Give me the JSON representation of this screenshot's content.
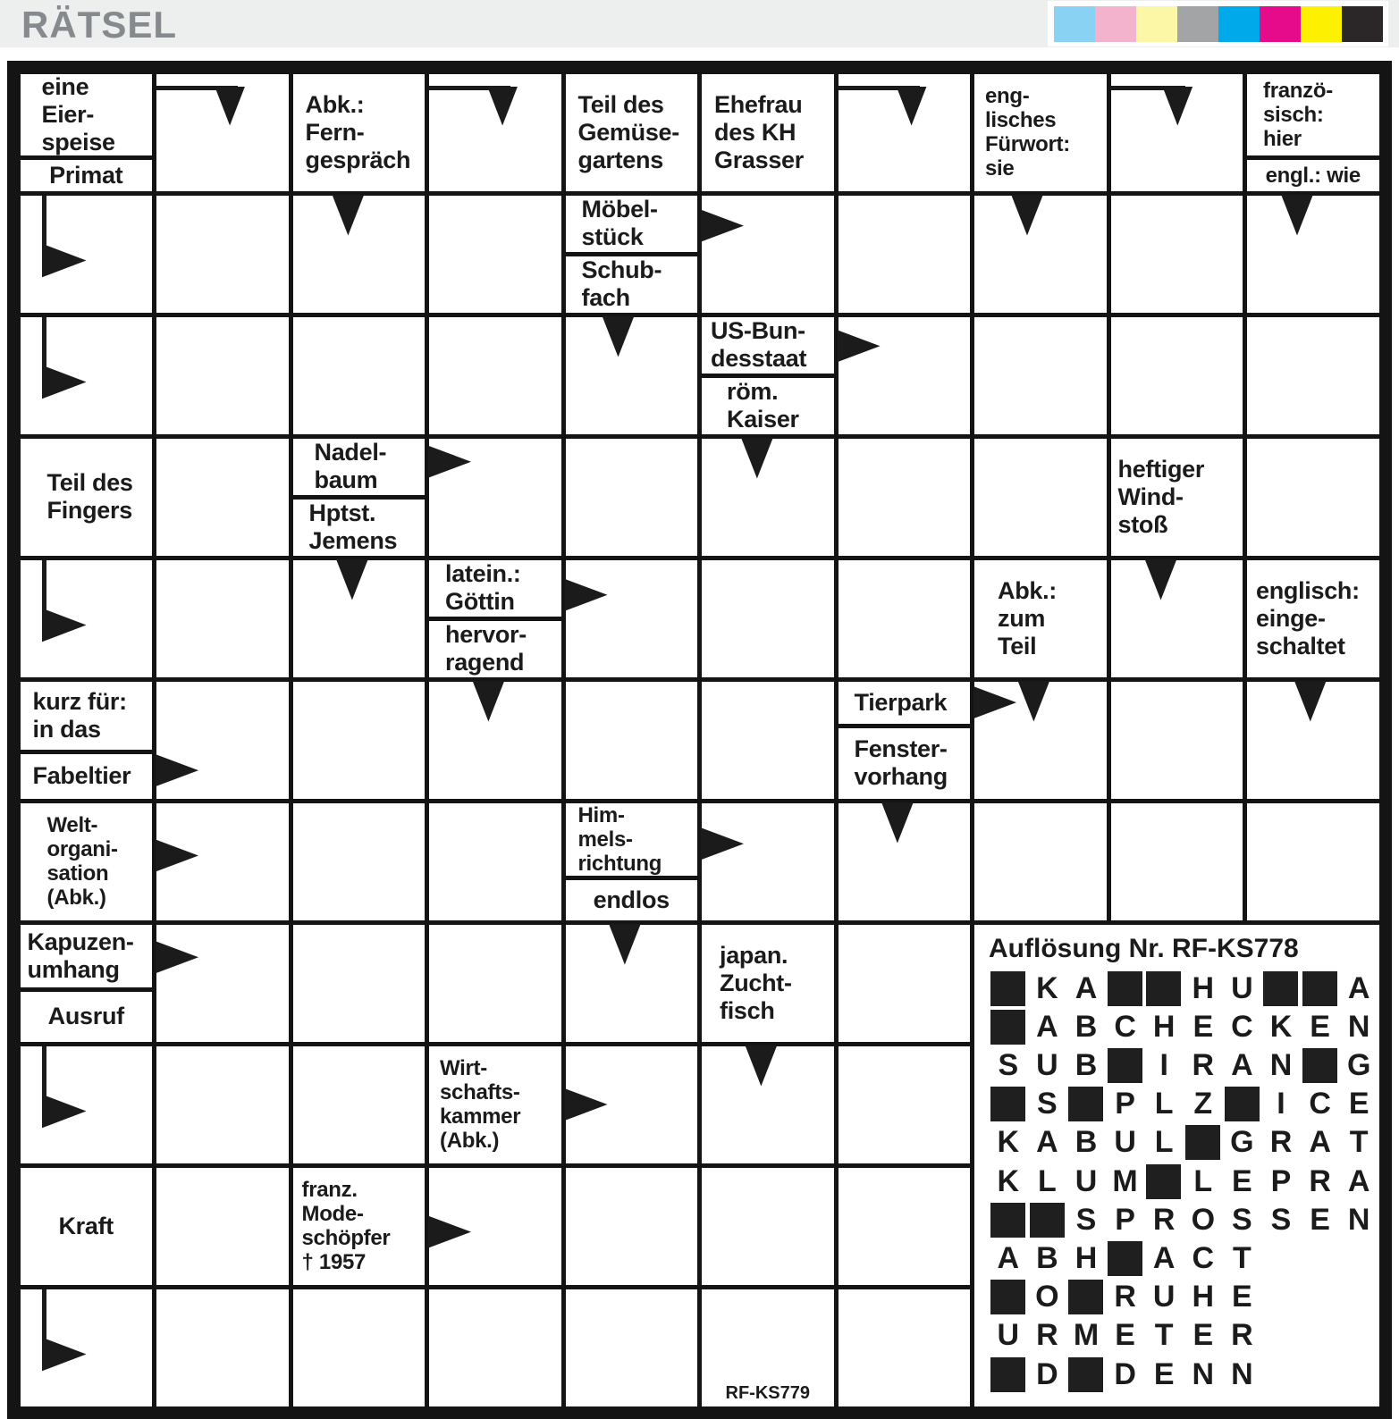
{
  "header": {
    "title": "RÄTSEL",
    "color_bar": [
      "#8ad2f4",
      "#f3b3cd",
      "#fbf7a6",
      "#a2a4a6",
      "#00aaea",
      "#e50b8a",
      "#fdf000",
      "#2b2627"
    ]
  },
  "puzzle_code": "RF-KS779",
  "grid": {
    "rows": 11,
    "cols": 10,
    "line_color": "#141414"
  },
  "cells": [
    {
      "r": 1,
      "c": 1,
      "split": 0.72,
      "top": {
        "text": "eine\nEier-\nspeise",
        "padLeft": 24
      },
      "bottom": {
        "text": "Primat",
        "align": "center"
      }
    },
    {
      "r": 1,
      "c": 2,
      "arrows": [
        {
          "t": "turndown",
          "x": 0.55
        }
      ]
    },
    {
      "r": 1,
      "c": 3,
      "clue": {
        "text": "Abk.:\nFern-\ngespräch",
        "padLeft": 14
      }
    },
    {
      "r": 1,
      "c": 4,
      "arrows": [
        {
          "t": "turndown",
          "x": 0.55
        }
      ]
    },
    {
      "r": 1,
      "c": 5,
      "clue": {
        "text": "Teil des\nGemüse-\ngartens",
        "padLeft": 14
      }
    },
    {
      "r": 1,
      "c": 6,
      "clue": {
        "text": "Ehefrau\ndes KH\nGrasser",
        "padLeft": 14
      }
    },
    {
      "r": 1,
      "c": 7,
      "arrows": [
        {
          "t": "turndown",
          "x": 0.55
        }
      ]
    },
    {
      "r": 1,
      "c": 8,
      "clue": {
        "text": "eng-\nlisches\nFürwort:\nsie",
        "padLeft": 12,
        "small": true
      }
    },
    {
      "r": 1,
      "c": 9,
      "arrows": [
        {
          "t": "turndown",
          "x": 0.5
        }
      ]
    },
    {
      "r": 1,
      "c": 10,
      "split": 0.72,
      "top": {
        "text": "franzö-\nsisch:\nhier",
        "padLeft": 18,
        "small": true
      },
      "bottom": {
        "text": "engl.: wie",
        "align": "center",
        "small": true
      }
    },
    {
      "r": 2,
      "c": 1,
      "arrows": [
        {
          "t": "flag"
        }
      ]
    },
    {
      "r": 2,
      "c": 3,
      "arrows": [
        {
          "t": "down",
          "x": 0.42
        }
      ]
    },
    {
      "r": 2,
      "c": 5,
      "split": 0.5,
      "top": {
        "text": "Möbel-\nstück",
        "padLeft": 18
      },
      "bottom": {
        "text": "Schub-\nfach",
        "padLeft": 18
      }
    },
    {
      "r": 2,
      "c": 6,
      "arrows": [
        {
          "t": "right",
          "y": 0.26
        }
      ]
    },
    {
      "r": 2,
      "c": 8,
      "arrows": [
        {
          "t": "down",
          "x": 0.4
        }
      ]
    },
    {
      "r": 2,
      "c": 10,
      "arrows": [
        {
          "t": "down",
          "x": 0.38
        }
      ]
    },
    {
      "r": 3,
      "c": 1,
      "arrows": [
        {
          "t": "flag"
        }
      ]
    },
    {
      "r": 3,
      "c": 5,
      "arrows": [
        {
          "t": "down",
          "x": 0.4
        }
      ]
    },
    {
      "r": 3,
      "c": 6,
      "split": 0.5,
      "top": {
        "text": "US-Bun-\ndesstaat",
        "padLeft": 10
      },
      "bottom": {
        "text": "röm.\nKaiser",
        "padLeft": 28
      }
    },
    {
      "r": 3,
      "c": 7,
      "arrows": [
        {
          "t": "right",
          "y": 0.25
        }
      ]
    },
    {
      "r": 4,
      "c": 1,
      "clue": {
        "text": "Teil des\nFingers",
        "padLeft": 30
      }
    },
    {
      "r": 4,
      "c": 3,
      "split": 0.5,
      "top": {
        "text": "Nadel-\nbaum",
        "padLeft": 24
      },
      "bottom": {
        "text": "Hptst.\nJemens",
        "padLeft": 18
      }
    },
    {
      "r": 4,
      "c": 4,
      "arrows": [
        {
          "t": "right",
          "y": 0.2
        }
      ]
    },
    {
      "r": 4,
      "c": 6,
      "arrows": [
        {
          "t": "down",
          "x": 0.42
        }
      ]
    },
    {
      "r": 4,
      "c": 9,
      "clue": {
        "text": "heftiger\nWind-\nstoß",
        "padLeft": 8
      }
    },
    {
      "r": 5,
      "c": 1,
      "arrows": [
        {
          "t": "flag"
        }
      ]
    },
    {
      "r": 5,
      "c": 3,
      "arrows": [
        {
          "t": "down",
          "x": 0.45
        }
      ]
    },
    {
      "r": 5,
      "c": 4,
      "split": 0.5,
      "top": {
        "text": "latein.:\nGöttin",
        "padLeft": 18
      },
      "bottom": {
        "text": "hervor-\nragend",
        "padLeft": 18
      }
    },
    {
      "r": 5,
      "c": 5,
      "arrows": [
        {
          "t": "right",
          "y": 0.3
        }
      ]
    },
    {
      "r": 5,
      "c": 8,
      "clue": {
        "text": "Abk.:\nzum\nTeil",
        "padLeft": 26
      }
    },
    {
      "r": 5,
      "c": 9,
      "arrows": [
        {
          "t": "down",
          "x": 0.38
        }
      ]
    },
    {
      "r": 5,
      "c": 10,
      "clue": {
        "text": "englisch:\neinge-\nschaltet",
        "padLeft": 10
      }
    },
    {
      "r": 6,
      "c": 1,
      "split": 0.6,
      "top": {
        "text": "kurz für:\nin das",
        "padLeft": 14
      },
      "bottom": {
        "text": "Fabeltier",
        "padLeft": 14
      }
    },
    {
      "r": 6,
      "c": 2,
      "arrows": [
        {
          "t": "right",
          "y": 0.76
        }
      ]
    },
    {
      "r": 6,
      "c": 4,
      "arrows": [
        {
          "t": "down",
          "x": 0.45
        }
      ]
    },
    {
      "r": 6,
      "c": 7,
      "split": 0.38,
      "top": {
        "text": "Tierpark",
        "padLeft": 18
      },
      "bottom": {
        "text": "Fenster-\nvorhang",
        "padLeft": 18
      }
    },
    {
      "r": 6,
      "c": 8,
      "arrows": [
        {
          "t": "right",
          "y": 0.18
        },
        {
          "t": "down",
          "x": 0.45
        }
      ]
    },
    {
      "r": 6,
      "c": 10,
      "arrows": [
        {
          "t": "down",
          "x": 0.48
        }
      ]
    },
    {
      "r": 7,
      "c": 1,
      "clue": {
        "text": "Welt-\norgani-\nsation\n(Abk.)",
        "padLeft": 30,
        "small": true
      }
    },
    {
      "r": 7,
      "c": 2,
      "arrows": [
        {
          "t": "right",
          "y": 0.45
        }
      ]
    },
    {
      "r": 7,
      "c": 5,
      "split": 0.64,
      "top": {
        "text": "Him-\nmels-\nrichtung",
        "padLeft": 14,
        "small": true
      },
      "bottom": {
        "text": "endlos",
        "align": "center"
      }
    },
    {
      "r": 7,
      "c": 6,
      "arrows": [
        {
          "t": "right",
          "y": 0.35
        }
      ]
    },
    {
      "r": 7,
      "c": 7,
      "arrows": [
        {
          "t": "down",
          "x": 0.45
        }
      ]
    },
    {
      "r": 8,
      "c": 1,
      "split": 0.56,
      "top": {
        "text": "Kapuzen-\numhang",
        "padLeft": 8
      },
      "bottom": {
        "text": "Ausruf",
        "align": "center"
      }
    },
    {
      "r": 8,
      "c": 2,
      "arrows": [
        {
          "t": "right",
          "y": 0.28
        }
      ]
    },
    {
      "r": 8,
      "c": 5,
      "arrows": [
        {
          "t": "down",
          "x": 0.45
        }
      ]
    },
    {
      "r": 8,
      "c": 6,
      "clue": {
        "text": "japan.\nZucht-\nfisch",
        "padLeft": 20
      }
    },
    {
      "r": 9,
      "c": 1,
      "arrows": [
        {
          "t": "flag"
        }
      ]
    },
    {
      "r": 9,
      "c": 4,
      "clue": {
        "text": "Wirt-\nschafts-\nkammer\n(Abk.)",
        "padLeft": 12,
        "small": true
      }
    },
    {
      "r": 9,
      "c": 5,
      "arrows": [
        {
          "t": "right",
          "y": 0.5
        }
      ]
    },
    {
      "r": 9,
      "c": 6,
      "arrows": [
        {
          "t": "down",
          "x": 0.45
        }
      ]
    },
    {
      "r": 10,
      "c": 1,
      "clue": {
        "text": "Kraft",
        "align": "center"
      }
    },
    {
      "r": 10,
      "c": 3,
      "clue": {
        "text": "franz.\nMode-\nschöpfer\n† 1957",
        "padLeft": 10,
        "small": true
      }
    },
    {
      "r": 10,
      "c": 4,
      "arrows": [
        {
          "t": "right",
          "y": 0.55
        }
      ]
    },
    {
      "r": 11,
      "c": 1,
      "arrows": [
        {
          "t": "flag"
        }
      ]
    },
    {
      "r": 11,
      "c": 6,
      "label": {
        "text": "RF-KS779"
      }
    }
  ],
  "solution": {
    "title": "Auflösung Nr. RF-KS778",
    "span": {
      "row": 8,
      "col": 8,
      "rowspan": 4,
      "colspan": 3
    },
    "rows": [
      "#KA##HU##A",
      "#ABCHECKEN",
      "SUB#IRAN#G",
      "#S#PLZ#ICE",
      "KABUL#GRAT",
      "KLUM#LEPRA",
      "##SPROSSEN",
      "ABH#ACT...",
      "#O#RUHE...",
      "URMETER...",
      "#D#DENN..."
    ]
  }
}
